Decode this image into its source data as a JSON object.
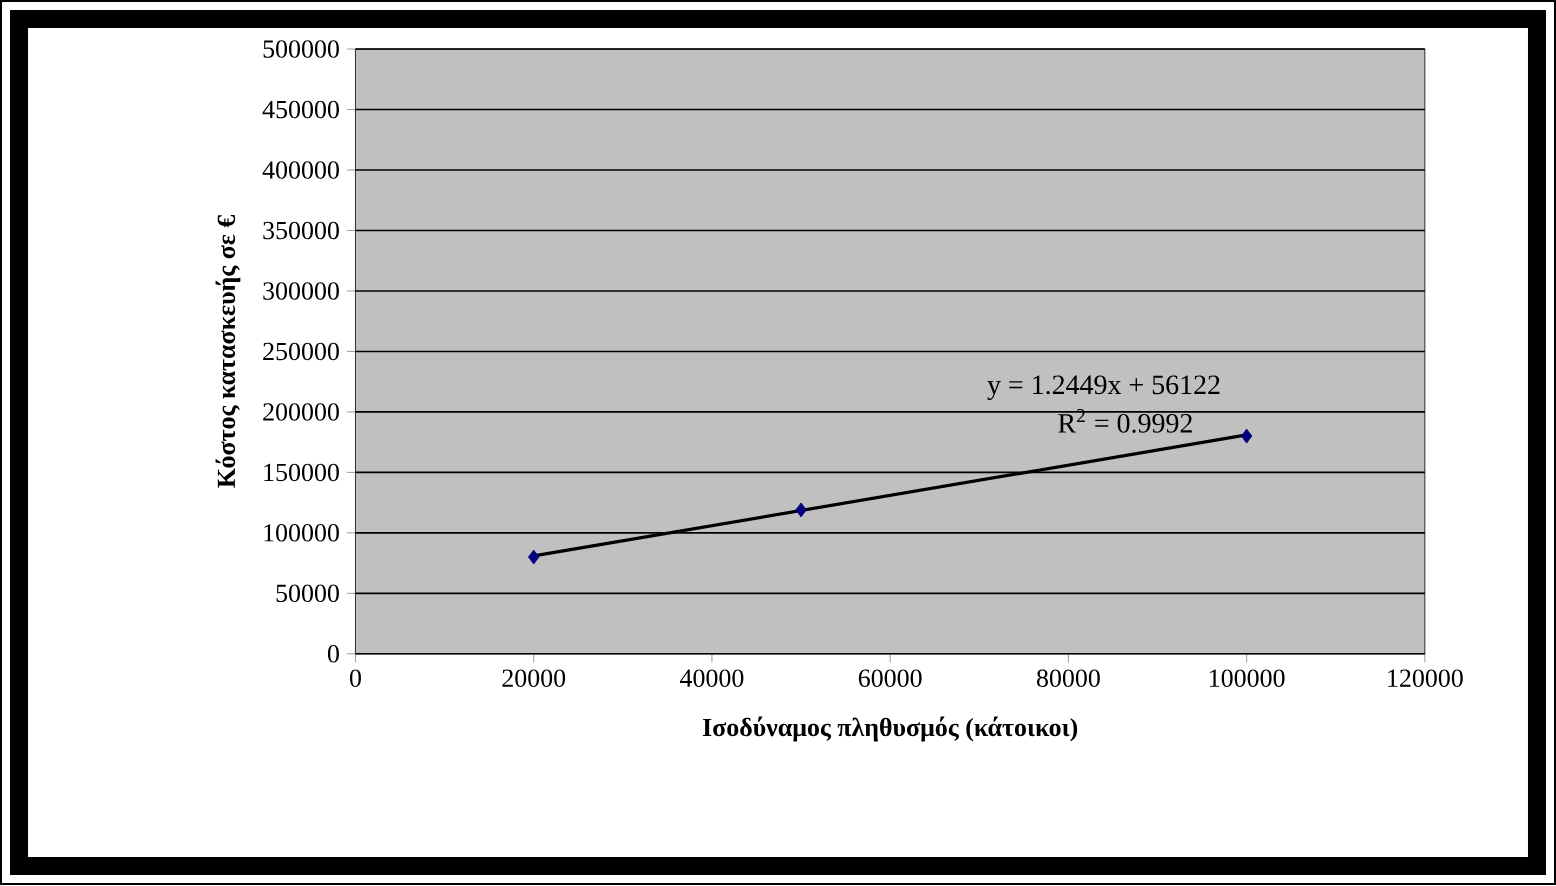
{
  "chart_data": {
    "type": "scatter",
    "xlabel": "Ισοδύναμος πληθυσμός (κάτοικοι)",
    "ylabel": "Κόστος κατασκευής σε €",
    "x": [
      20000,
      50000,
      100000
    ],
    "series": [
      {
        "color": "#000080",
        "values": [
          80000,
          119000,
          180000
        ]
      },
      {
        "type": "line",
        "color": "#000000",
        "x": [
          20000,
          100000
        ],
        "values": [
          81000,
          181000
        ],
        "marker": "none"
      }
    ],
    "xlim": [
      0,
      120000
    ],
    "xticks": [
      0,
      20000,
      40000,
      60000,
      80000,
      100000,
      120000
    ],
    "ylim": [
      0,
      500000
    ],
    "yticks": [
      0,
      50000,
      100000,
      150000,
      200000,
      250000,
      300000,
      350000,
      400000,
      450000,
      500000
    ],
    "grid": "y",
    "marker": "diamond",
    "annotations": [
      "y = 1.2449x + 56122",
      "R$^{2}$ = 0.9992"
    ]
  }
}
